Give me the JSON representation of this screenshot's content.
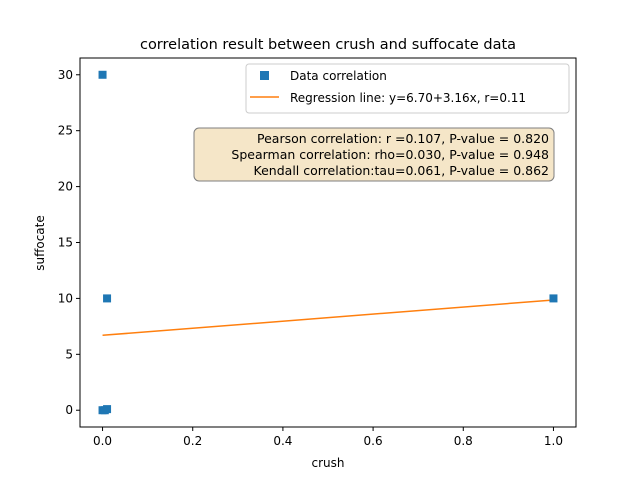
{
  "chart_data": {
    "type": "scatter",
    "title": "correlation result between crush and suffocate data",
    "xlabel": "crush",
    "ylabel": "suffocate",
    "xlim": [
      -0.05,
      1.05
    ],
    "ylim": [
      -1.5,
      31.5
    ],
    "xticks": [
      0.0,
      0.2,
      0.4,
      0.6,
      0.8,
      1.0
    ],
    "xtick_labels": [
      "0.0",
      "0.2",
      "0.4",
      "0.6",
      "0.8",
      "1.0"
    ],
    "yticks": [
      0,
      5,
      10,
      15,
      20,
      25,
      30
    ],
    "ytick_labels": [
      "0",
      "5",
      "10",
      "15",
      "20",
      "25",
      "30"
    ],
    "grid": false,
    "legend_position": "top-right",
    "series": [
      {
        "name": "Data correlation",
        "kind": "scatter",
        "marker": "square",
        "color": "#1f77b4",
        "points": [
          {
            "x": 0.0,
            "y": 30
          },
          {
            "x": 0.01,
            "y": 10
          },
          {
            "x": 0.0,
            "y": 0
          },
          {
            "x": 0.005,
            "y": 0
          },
          {
            "x": 0.01,
            "y": 0.1
          },
          {
            "x": 1.0,
            "y": 10
          }
        ]
      },
      {
        "name": "Regression line: y=6.70+3.16x, r=0.11",
        "kind": "line",
        "color": "#ff7f0e",
        "points": [
          {
            "x": 0.0,
            "y": 6.7
          },
          {
            "x": 1.0,
            "y": 9.86
          }
        ]
      }
    ],
    "annotation_box": {
      "lines": [
        "Pearson correlation: r =0.107, P-value = 0.820",
        "Spearman correlation: rho=0.030, P-value = 0.948",
        "Kendall correlation:tau=0.061, P-value = 0.862"
      ],
      "background": "#f5e6c8",
      "border": "#7f7f7f"
    }
  }
}
